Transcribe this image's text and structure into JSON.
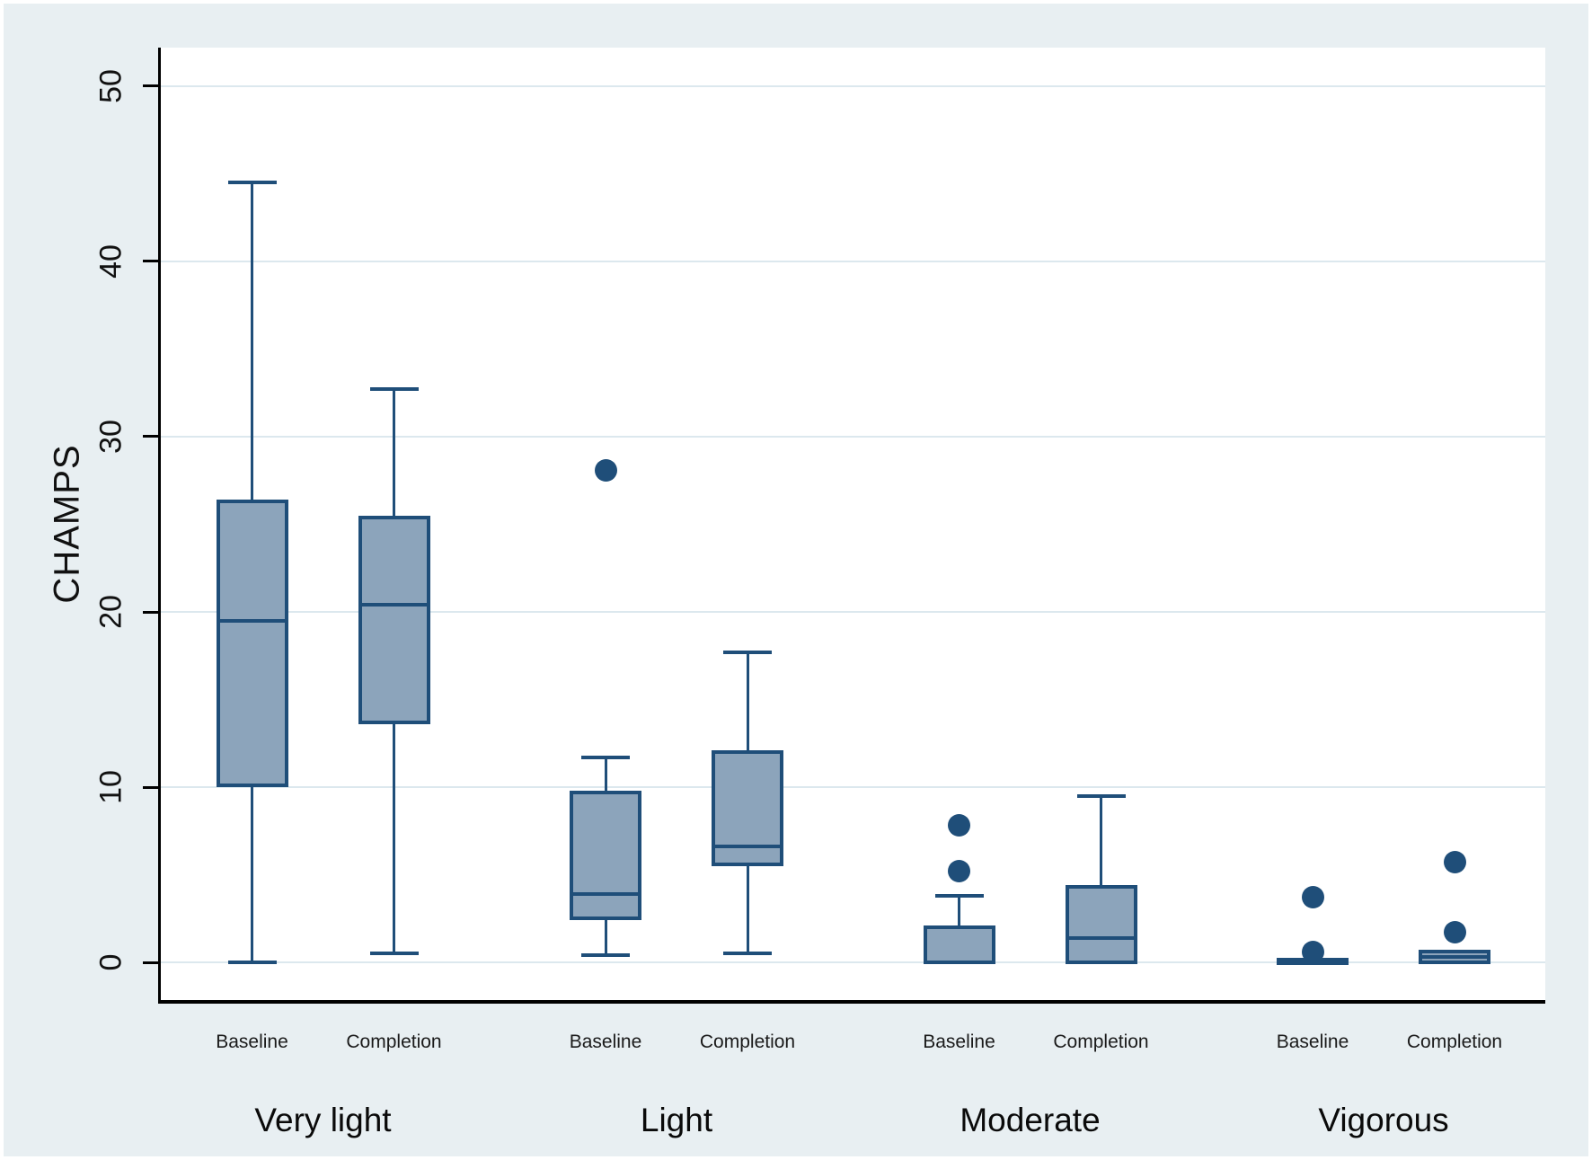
{
  "figure": {
    "background": "#ffffff",
    "panel_background": "#e8eff2"
  },
  "chart_data": {
    "type": "box",
    "title": "",
    "xlabel": "",
    "ylabel": "CHAMPS",
    "yticks": [
      0,
      10,
      20,
      30,
      40,
      50
    ],
    "ylim": [
      -2.15,
      52.2
    ],
    "grid": true,
    "series_labels": [
      "Baseline",
      "Completion"
    ],
    "groups": [
      {
        "label": "Very light",
        "boxes": [
          {
            "series": "Baseline",
            "min": 0.0,
            "q1": 10.1,
            "median": 19.5,
            "q3": 26.3,
            "max": 44.5,
            "outliers": []
          },
          {
            "series": "Completion",
            "min": 0.5,
            "q1": 13.7,
            "median": 20.4,
            "q3": 25.4,
            "max": 32.7,
            "outliers": []
          }
        ]
      },
      {
        "label": "Light",
        "boxes": [
          {
            "series": "Baseline",
            "min": 0.4,
            "q1": 2.5,
            "median": 3.9,
            "q3": 9.7,
            "max": 11.7,
            "outliers": [
              28.1
            ]
          },
          {
            "series": "Completion",
            "min": 0.5,
            "q1": 5.6,
            "median": 6.6,
            "q3": 12.0,
            "max": 17.7,
            "outliers": []
          }
        ]
      },
      {
        "label": "Moderate",
        "boxes": [
          {
            "series": "Baseline",
            "min": 0,
            "q1": 0,
            "median": 0,
            "q3": 2.0,
            "max": 3.8,
            "outliers": [
              5.2,
              7.8
            ]
          },
          {
            "series": "Completion",
            "min": 0,
            "q1": 0,
            "median": 1.4,
            "q3": 4.3,
            "max": 9.5,
            "outliers": []
          }
        ]
      },
      {
        "label": "Vigorous",
        "boxes": [
          {
            "series": "Baseline",
            "min": 0,
            "q1": 0,
            "median": 0,
            "q3": 0.15,
            "max": 0.15,
            "outliers": [
              0.6,
              3.7
            ]
          },
          {
            "series": "Completion",
            "min": 0,
            "q1": 0,
            "median": 0.3,
            "q3": 0.6,
            "max": 0.6,
            "outliers": [
              1.7,
              5.7
            ]
          }
        ]
      }
    ],
    "colors": {
      "box_fill": "#8ca4bb",
      "box_stroke": "#1f4e79",
      "outlier": "#1f4e79",
      "grid": "#dce8ee",
      "axis": "#000000",
      "plot_bg": "#ffffff",
      "tick_label": "#111111"
    }
  }
}
